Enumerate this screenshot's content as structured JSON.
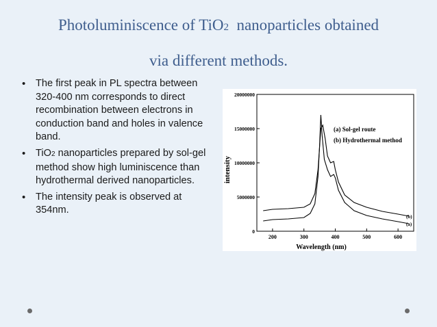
{
  "title": {
    "line1_a": "Photoluminiscence of TiO",
    "line1_sub": "2",
    "line1_b": "  nanoparticles obtained",
    "line2": "via different methods."
  },
  "bullets": [
    {
      "text": "The first peak in PL spectra between 320-400 nm corresponds to direct recombination between electrons in conduction band and holes in valence band."
    },
    {
      "text_a": "TiO",
      "text_sub": "2",
      "text_b": " nanoparticles prepared by sol-gel method show high luminiscence than hydrothermal derived nanoparticles."
    },
    {
      "text": "The intensity peak is observed at 354nm."
    }
  ],
  "chart_data": {
    "type": "line",
    "xlabel": "Wavelength (nm)",
    "ylabel": "intensity",
    "xlim": [
      150,
      650
    ],
    "ylim": [
      0,
      20000000
    ],
    "x_ticks": [
      "200",
      "300",
      "400",
      "500",
      "600"
    ],
    "y_ticks": [
      "0",
      "5000000",
      "10000000",
      "15000000",
      "20000000"
    ],
    "legend": [
      "(a) Sol-gel route",
      "(b) Hydrothermal method"
    ],
    "series": [
      {
        "name": "(a) Sol-gel route",
        "end_label": "(a)",
        "x": [
          170,
          200,
          250,
          300,
          320,
          335,
          345,
          350,
          354,
          358,
          365,
          375,
          385,
          395,
          400,
          410,
          430,
          460,
          500,
          550,
          600,
          635
        ],
        "y": [
          1500000,
          1700000,
          1800000,
          2000000,
          2600000,
          4000000,
          8000000,
          12500000,
          17000000,
          14000000,
          10500000,
          9000000,
          8000000,
          8300000,
          7800000,
          6000000,
          4200000,
          3000000,
          2300000,
          1800000,
          1400000,
          1100000
        ]
      },
      {
        "name": "(b) Hydrothermal method",
        "end_label": "(b)",
        "x": [
          170,
          200,
          250,
          300,
          320,
          335,
          345,
          354,
          360,
          368,
          375,
          385,
          395,
          400,
          410,
          430,
          460,
          500,
          550,
          600,
          635
        ],
        "y": [
          3000000,
          3200000,
          3300000,
          3500000,
          4000000,
          5500000,
          9000000,
          15000000,
          15500000,
          13500000,
          11000000,
          10000000,
          10200000,
          9000000,
          7200000,
          5300000,
          4200000,
          3500000,
          2900000,
          2500000,
          2200000
        ]
      }
    ]
  }
}
